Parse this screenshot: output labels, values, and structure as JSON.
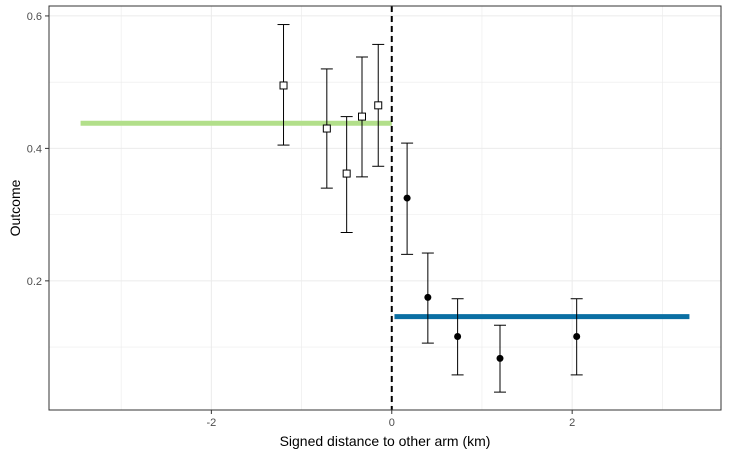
{
  "chart_data": {
    "type": "scatter",
    "xlabel": "Signed distance to other arm (km)",
    "ylabel": "Outcome",
    "xlim": [
      -3.8,
      3.65
    ],
    "ylim": [
      0.005,
      0.615
    ],
    "x_ticks": [
      -2,
      0,
      2
    ],
    "x_tick_labels": [
      "-2",
      "0",
      "2"
    ],
    "y_ticks": [
      0.2,
      0.4,
      0.6
    ],
    "y_tick_labels": [
      "0.2",
      "0.4",
      "0.6"
    ],
    "grid": true,
    "cutoff_x": 0,
    "series": [
      {
        "marker": "open-square",
        "points": [
          {
            "x": -1.2,
            "y": 0.495,
            "lo": 0.405,
            "hi": 0.587
          },
          {
            "x": -0.72,
            "y": 0.43,
            "lo": 0.34,
            "hi": 0.52
          },
          {
            "x": -0.5,
            "y": 0.362,
            "lo": 0.273,
            "hi": 0.448
          },
          {
            "x": -0.33,
            "y": 0.448,
            "lo": 0.357,
            "hi": 0.538
          },
          {
            "x": -0.15,
            "y": 0.465,
            "lo": 0.373,
            "hi": 0.557
          }
        ]
      },
      {
        "marker": "filled-circle",
        "points": [
          {
            "x": 0.17,
            "y": 0.325,
            "lo": 0.24,
            "hi": 0.408
          },
          {
            "x": 0.4,
            "y": 0.175,
            "lo": 0.106,
            "hi": 0.242
          },
          {
            "x": 0.73,
            "y": 0.116,
            "lo": 0.058,
            "hi": 0.173
          },
          {
            "x": 1.2,
            "y": 0.083,
            "lo": 0.032,
            "hi": 0.133
          },
          {
            "x": 2.05,
            "y": 0.116,
            "lo": 0.058,
            "hi": 0.173
          }
        ]
      }
    ],
    "fit_lines": [
      {
        "x_start": -3.45,
        "x_end": 0,
        "y": 0.438,
        "color": "#b2df8a"
      },
      {
        "x_start": 0.03,
        "x_end": 3.3,
        "y": 0.146,
        "color": "#0a6fa3"
      }
    ]
  }
}
